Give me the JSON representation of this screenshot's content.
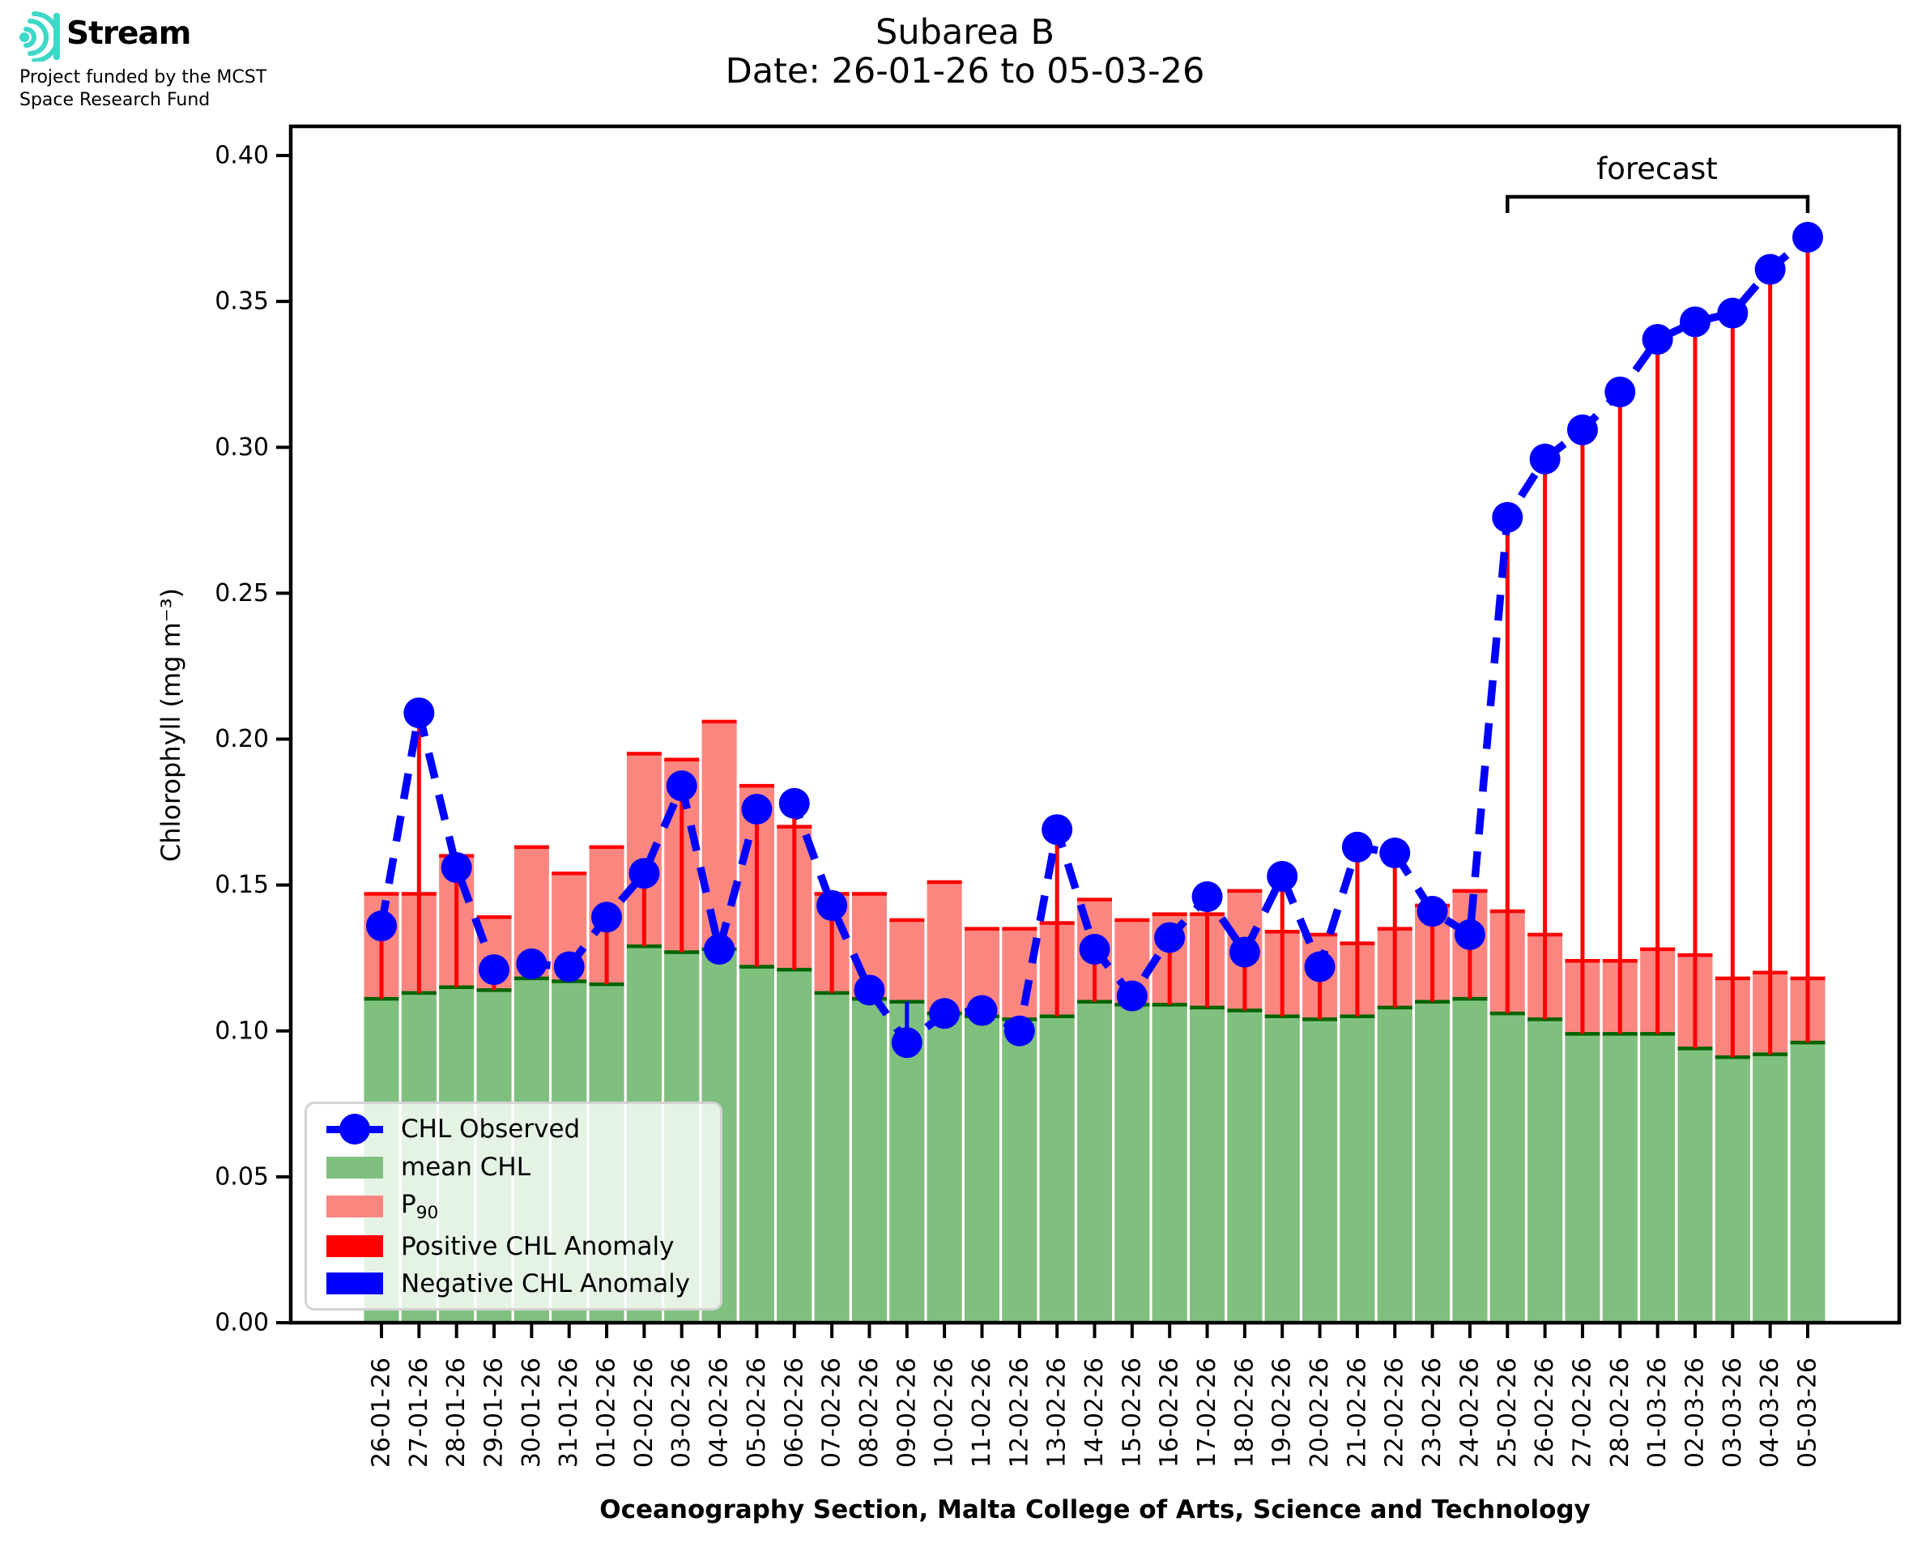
{
  "header": {
    "logo": {
      "brand": "Stream",
      "subtitle_line1": "Project funded by the MCST",
      "subtitle_line2": "Space Research Fund",
      "icon_color": "#3ed8c8"
    },
    "title_line1": "Subarea B",
    "title_line2": "Date: 26-01-26 to 05-03-26"
  },
  "legend": {
    "observed": "CHL Observed",
    "mean": "mean CHL",
    "p90_main": "P",
    "p90_sub": "90",
    "positive": "Positive CHL Anomaly",
    "negative": "Negative CHL Anomaly"
  },
  "chart_data": {
    "type": "bar",
    "title": "Subarea B",
    "subtitle": "Date: 26-01-26 to 05-03-26",
    "xlabel": "Oceanography Section, Malta College of Arts, Science and Technology",
    "ylabel": "Chlorophyll (mg m⁻³)",
    "ylim": [
      0,
      0.41
    ],
    "yticks": [
      0,
      0.05,
      0.1,
      0.15,
      0.2,
      0.25,
      0.3,
      0.35,
      0.4
    ],
    "grid": false,
    "legend_position": "lower left",
    "annotation": {
      "label": "forecast",
      "start_index": 30,
      "end_index": 38
    },
    "categories": [
      "26-01-26",
      "27-01-26",
      "28-01-26",
      "29-01-26",
      "30-01-26",
      "31-01-26",
      "01-02-26",
      "02-02-26",
      "03-02-26",
      "04-02-26",
      "05-02-26",
      "06-02-26",
      "07-02-26",
      "08-02-26",
      "09-02-26",
      "10-02-26",
      "11-02-26",
      "12-02-26",
      "13-02-26",
      "14-02-26",
      "15-02-26",
      "16-02-26",
      "17-02-26",
      "18-02-26",
      "19-02-26",
      "20-02-26",
      "21-02-26",
      "22-02-26",
      "23-02-26",
      "24-02-26",
      "25-02-26",
      "26-02-26",
      "27-02-26",
      "28-02-26",
      "01-03-26",
      "02-03-26",
      "03-03-26",
      "04-03-26",
      "05-03-26"
    ],
    "series": [
      {
        "name": "mean CHL",
        "render": "bar",
        "values": [
          0.111,
          0.113,
          0.115,
          0.114,
          0.118,
          0.117,
          0.116,
          0.129,
          0.127,
          0.128,
          0.122,
          0.121,
          0.113,
          0.111,
          0.11,
          0.106,
          0.105,
          0.104,
          0.105,
          0.11,
          0.109,
          0.109,
          0.108,
          0.107,
          0.105,
          0.104,
          0.105,
          0.108,
          0.11,
          0.111,
          0.106,
          0.104,
          0.099,
          0.099,
          0.099,
          0.094,
          0.091,
          0.092,
          0.096
        ]
      },
      {
        "name": "P90",
        "render": "bar",
        "values": [
          0.147,
          0.147,
          0.16,
          0.139,
          0.163,
          0.154,
          0.163,
          0.195,
          0.193,
          0.206,
          0.184,
          0.17,
          0.147,
          0.147,
          0.138,
          0.151,
          0.135,
          0.135,
          0.137,
          0.145,
          0.138,
          0.14,
          0.14,
          0.148,
          0.134,
          0.133,
          0.13,
          0.135,
          0.143,
          0.148,
          0.141,
          0.133,
          0.124,
          0.124,
          0.128,
          0.126,
          0.118,
          0.12,
          0.118
        ]
      },
      {
        "name": "CHL Observed",
        "render": "line",
        "values": [
          0.136,
          0.209,
          0.156,
          0.121,
          0.123,
          0.122,
          0.139,
          0.154,
          0.184,
          0.128,
          0.176,
          0.178,
          0.143,
          0.114,
          0.096,
          0.106,
          0.107,
          0.1,
          0.169,
          0.128,
          0.112,
          0.132,
          0.146,
          0.127,
          0.153,
          0.122,
          0.163,
          0.161,
          0.141,
          0.133,
          0.276,
          0.296,
          0.306,
          0.319,
          0.337,
          0.343,
          0.346,
          0.361,
          0.372
        ]
      }
    ],
    "colors": {
      "mean_fill": "#7fc07f",
      "mean_edge": "#006400",
      "p90_fill": "#fb8680",
      "p90_edge": "#ff0000",
      "observed": "#0000ff",
      "positive_anomaly": "#ff0000",
      "negative_anomaly": "#0000ff",
      "axis": "#000000"
    }
  }
}
